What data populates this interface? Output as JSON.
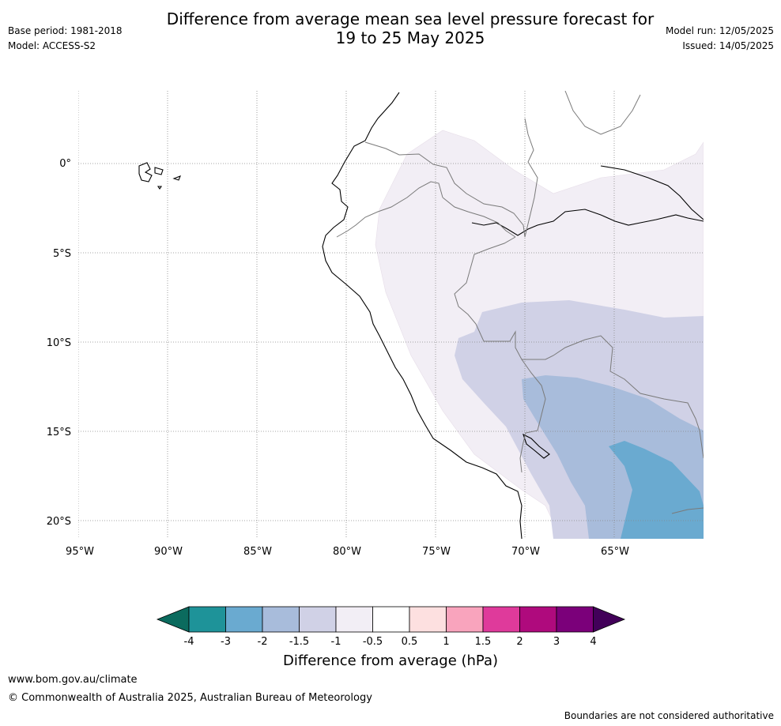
{
  "header": {
    "title_line1": "Difference from average mean sea level pressure forecast for",
    "title_line2": "19 to 25 May 2025",
    "base_period": "Base period: 1981-2018",
    "model": "Model: ACCESS-S2",
    "model_run": "Model run: 12/05/2025",
    "issued": "Issued: 14/05/2025"
  },
  "map": {
    "region": "Western South America",
    "lon_range": [
      -95,
      -60
    ],
    "lat_range": [
      -21,
      4
    ],
    "lat_labels": [
      "0°",
      "5°S",
      "10°S",
      "15°S",
      "20°S"
    ],
    "lon_labels": [
      "95°W",
      "90°W",
      "85°W",
      "80°W",
      "75°W",
      "70°W",
      "65°W"
    ],
    "gridlines": true
  },
  "colorbar": {
    "title": "Difference from average (hPa)",
    "ticks": [
      "-4",
      "-3",
      "-2",
      "-1.5",
      "-1",
      "-0.5",
      "0.5",
      "1",
      "1.5",
      "2",
      "3",
      "4"
    ],
    "colors": {
      "under": "#0b6b5e",
      "bins": [
        "#1e9399",
        "#6aaad0",
        "#a8bcdb",
        "#d0d1e6",
        "#f2eef5",
        "#ffffff",
        "#fde0e0",
        "#f9a4bd",
        "#df3a9b",
        "#af0a7d",
        "#7b007a"
      ],
      "over": "#420059"
    }
  },
  "footer": {
    "url": "www.bom.gov.au/climate",
    "copyright": "© Commonwealth of Australia 2025, Australian Bureau of Meteorology",
    "disclaimer": "Boundaries are not considered authoritative"
  }
}
